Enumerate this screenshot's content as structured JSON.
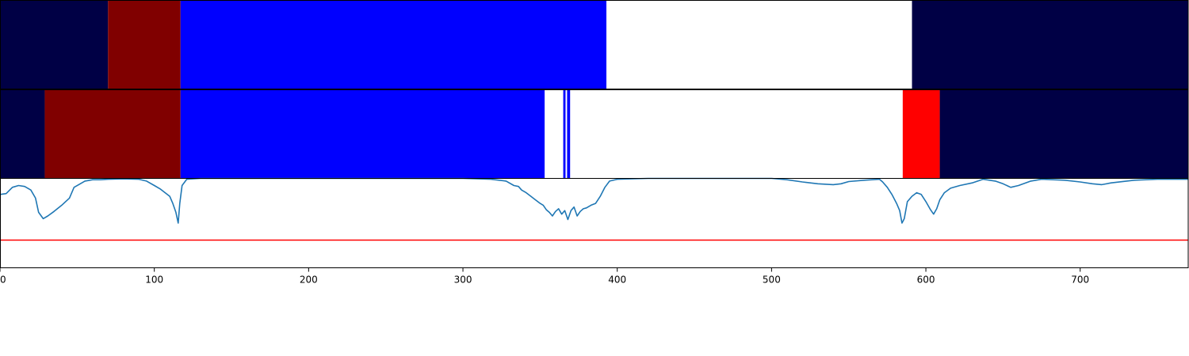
{
  "chart_data": [
    {
      "type": "heatmap",
      "panel": "segment-strip-1",
      "xlim": [
        0,
        770
      ],
      "segments": [
        {
          "start": 0,
          "end": 70,
          "color": "#000045"
        },
        {
          "start": 70,
          "end": 117,
          "color": "#800000"
        },
        {
          "start": 117,
          "end": 393,
          "color": "#0000ff"
        },
        {
          "start": 393,
          "end": 591,
          "color": "#ffffff"
        },
        {
          "start": 591,
          "end": 770,
          "color": "#000045"
        }
      ]
    },
    {
      "type": "heatmap",
      "panel": "segment-strip-2",
      "xlim": [
        0,
        770
      ],
      "segments": [
        {
          "start": 0,
          "end": 29,
          "color": "#000045"
        },
        {
          "start": 29,
          "end": 117,
          "color": "#800000"
        },
        {
          "start": 117,
          "end": 353,
          "color": "#0000ff"
        },
        {
          "start": 353,
          "end": 365,
          "color": "#ffffff"
        },
        {
          "start": 365,
          "end": 366.5,
          "color": "#0000ff"
        },
        {
          "start": 366.5,
          "end": 367.5,
          "color": "#ffffff"
        },
        {
          "start": 367.5,
          "end": 369.5,
          "color": "#0000ff"
        },
        {
          "start": 369.5,
          "end": 585,
          "color": "#ffffff"
        },
        {
          "start": 585,
          "end": 609,
          "color": "#ff0000"
        },
        {
          "start": 609,
          "end": 770,
          "color": "#000045"
        }
      ]
    },
    {
      "type": "line",
      "panel": "signal-plot",
      "xlim": [
        0,
        770
      ],
      "ylim": [
        0,
        1
      ],
      "line_color": "#1f77b4",
      "threshold": 0.31,
      "threshold_color": "#ff0000",
      "x_ticks": [
        0,
        100,
        200,
        300,
        400,
        500,
        600,
        700
      ],
      "points": [
        [
          0,
          0.82
        ],
        [
          4,
          0.83
        ],
        [
          8,
          0.9
        ],
        [
          12,
          0.92
        ],
        [
          16,
          0.91
        ],
        [
          20,
          0.87
        ],
        [
          23,
          0.78
        ],
        [
          25,
          0.62
        ],
        [
          28,
          0.55
        ],
        [
          31,
          0.58
        ],
        [
          35,
          0.63
        ],
        [
          40,
          0.7
        ],
        [
          45,
          0.78
        ],
        [
          48,
          0.9
        ],
        [
          51,
          0.93
        ],
        [
          55,
          0.97
        ],
        [
          60,
          0.985
        ],
        [
          65,
          0.985
        ],
        [
          70,
          0.99
        ],
        [
          80,
          0.995
        ],
        [
          90,
          0.99
        ],
        [
          95,
          0.97
        ],
        [
          100,
          0.92
        ],
        [
          104,
          0.88
        ],
        [
          107,
          0.84
        ],
        [
          110,
          0.8
        ],
        [
          112,
          0.72
        ],
        [
          114,
          0.62
        ],
        [
          115.5,
          0.5
        ],
        [
          116.5,
          0.72
        ],
        [
          118,
          0.92
        ],
        [
          121,
          0.99
        ],
        [
          130,
          1.0
        ],
        [
          200,
          1.0
        ],
        [
          300,
          1.0
        ],
        [
          318,
          0.99
        ],
        [
          328,
          0.97
        ],
        [
          333,
          0.92
        ],
        [
          336,
          0.91
        ],
        [
          338,
          0.87
        ],
        [
          341,
          0.84
        ],
        [
          344,
          0.8
        ],
        [
          347,
          0.76
        ],
        [
          350,
          0.72
        ],
        [
          352,
          0.7
        ],
        [
          354,
          0.65
        ],
        [
          356,
          0.62
        ],
        [
          358,
          0.58
        ],
        [
          360,
          0.63
        ],
        [
          362,
          0.66
        ],
        [
          364,
          0.6
        ],
        [
          366,
          0.64
        ],
        [
          368,
          0.54
        ],
        [
          370,
          0.64
        ],
        [
          372,
          0.68
        ],
        [
          374,
          0.58
        ],
        [
          376,
          0.63
        ],
        [
          378,
          0.66
        ],
        [
          380,
          0.67
        ],
        [
          383,
          0.7
        ],
        [
          386,
          0.72
        ],
        [
          389,
          0.8
        ],
        [
          392,
          0.9
        ],
        [
          395,
          0.97
        ],
        [
          400,
          0.99
        ],
        [
          420,
          1.0
        ],
        [
          500,
          1.0
        ],
        [
          510,
          0.985
        ],
        [
          520,
          0.96
        ],
        [
          530,
          0.94
        ],
        [
          540,
          0.93
        ],
        [
          545,
          0.94
        ],
        [
          550,
          0.965
        ],
        [
          560,
          0.98
        ],
        [
          570,
          0.99
        ],
        [
          572,
          0.96
        ],
        [
          575,
          0.9
        ],
        [
          578,
          0.82
        ],
        [
          581,
          0.72
        ],
        [
          583,
          0.64
        ],
        [
          584.5,
          0.5
        ],
        [
          586,
          0.55
        ],
        [
          588,
          0.74
        ],
        [
          591,
          0.8
        ],
        [
          594,
          0.84
        ],
        [
          597,
          0.82
        ],
        [
          600,
          0.74
        ],
        [
          603,
          0.65
        ],
        [
          605,
          0.6
        ],
        [
          607,
          0.66
        ],
        [
          609,
          0.76
        ],
        [
          612,
          0.84
        ],
        [
          616,
          0.89
        ],
        [
          622,
          0.92
        ],
        [
          630,
          0.95
        ],
        [
          637,
          0.99
        ],
        [
          645,
          0.97
        ],
        [
          650,
          0.94
        ],
        [
          655,
          0.9
        ],
        [
          660,
          0.92
        ],
        [
          668,
          0.97
        ],
        [
          675,
          0.99
        ],
        [
          690,
          0.98
        ],
        [
          700,
          0.96
        ],
        [
          708,
          0.94
        ],
        [
          714,
          0.93
        ],
        [
          720,
          0.95
        ],
        [
          735,
          0.98
        ],
        [
          750,
          0.99
        ],
        [
          770,
          0.99
        ]
      ]
    }
  ]
}
